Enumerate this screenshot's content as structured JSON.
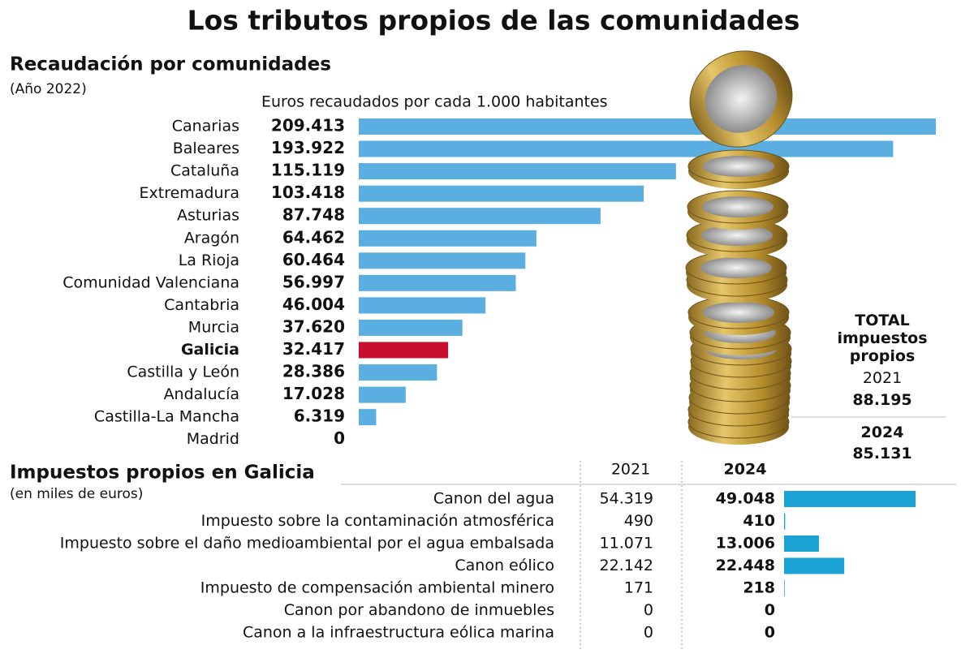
{
  "title": "Los tributos propios de las comunidades",
  "chart_data": [
    {
      "type": "bar",
      "orientation": "horizontal",
      "title": "Recaudación por comunidades",
      "subtitle": "(Año 2022)",
      "x_label": "Euros recaudados por cada 1.000 habitantes",
      "categories": [
        "Canarias",
        "Baleares",
        "Cataluña",
        "Extremadura",
        "Asturias",
        "Aragón",
        "La Rioja",
        "Comunidad Valenciana",
        "Cantabria",
        "Murcia",
        "Galicia",
        "Castilla y León",
        "Andalucía",
        "Castilla-La Mancha",
        "Madrid"
      ],
      "values": [
        209413,
        193922,
        115119,
        103418,
        87748,
        64462,
        60464,
        56997,
        46004,
        37620,
        32417,
        28386,
        17028,
        6319,
        0
      ],
      "value_labels": [
        "209.413",
        "193.922",
        "115.119",
        "103.418",
        "87.748",
        "64.462",
        "60.464",
        "56.997",
        "46.004",
        "37.620",
        "32.417",
        "28.386",
        "17.028",
        "6.319",
        "0"
      ],
      "color": "#5aaee0",
      "colors": [
        "#5aaee0",
        "#5aaee0",
        "#5aaee0",
        "#5aaee0",
        "#5aaee0",
        "#5aaee0",
        "#5aaee0",
        "#5aaee0",
        "#5aaee0",
        "#5aaee0",
        "#c8102e",
        "#5aaee0",
        "#5aaee0",
        "#5aaee0",
        "#5aaee0"
      ]
    },
    {
      "type": "bar",
      "orientation": "horizontal",
      "title": "Impuestos propios en Galicia",
      "subtitle": "(en miles de euros)",
      "categories": [
        "Canon del agua",
        "Impuesto sobre la contaminación atmosférica",
        "Impuesto sobre el daño medioambiental por el agua embalsada",
        "Canon eólico",
        "Impuesto de compensación ambiental minero",
        "Canon por abandono de inmuebles",
        "Canon a la infraestructura eólica marina"
      ],
      "series": [
        {
          "name": "2021",
          "values": [
            54319,
            490,
            11071,
            22142,
            171,
            0,
            0
          ],
          "value_labels": [
            "54.319",
            "490",
            "11.071",
            "22.142",
            "171",
            "0",
            "0"
          ]
        },
        {
          "name": "2024",
          "color": "#1aa3d4",
          "values": [
            49048,
            410,
            13006,
            22448,
            218,
            0,
            0
          ],
          "value_labels": [
            "49.048",
            "410",
            "13.006",
            "22.448",
            "218",
            "0",
            "0"
          ]
        }
      ]
    }
  ],
  "total": {
    "title": "TOTAL impuestos propios",
    "years": [
      "2021",
      "2024"
    ],
    "values": [
      88195,
      85131
    ],
    "value_labels": [
      "88.195",
      "85.131"
    ]
  }
}
